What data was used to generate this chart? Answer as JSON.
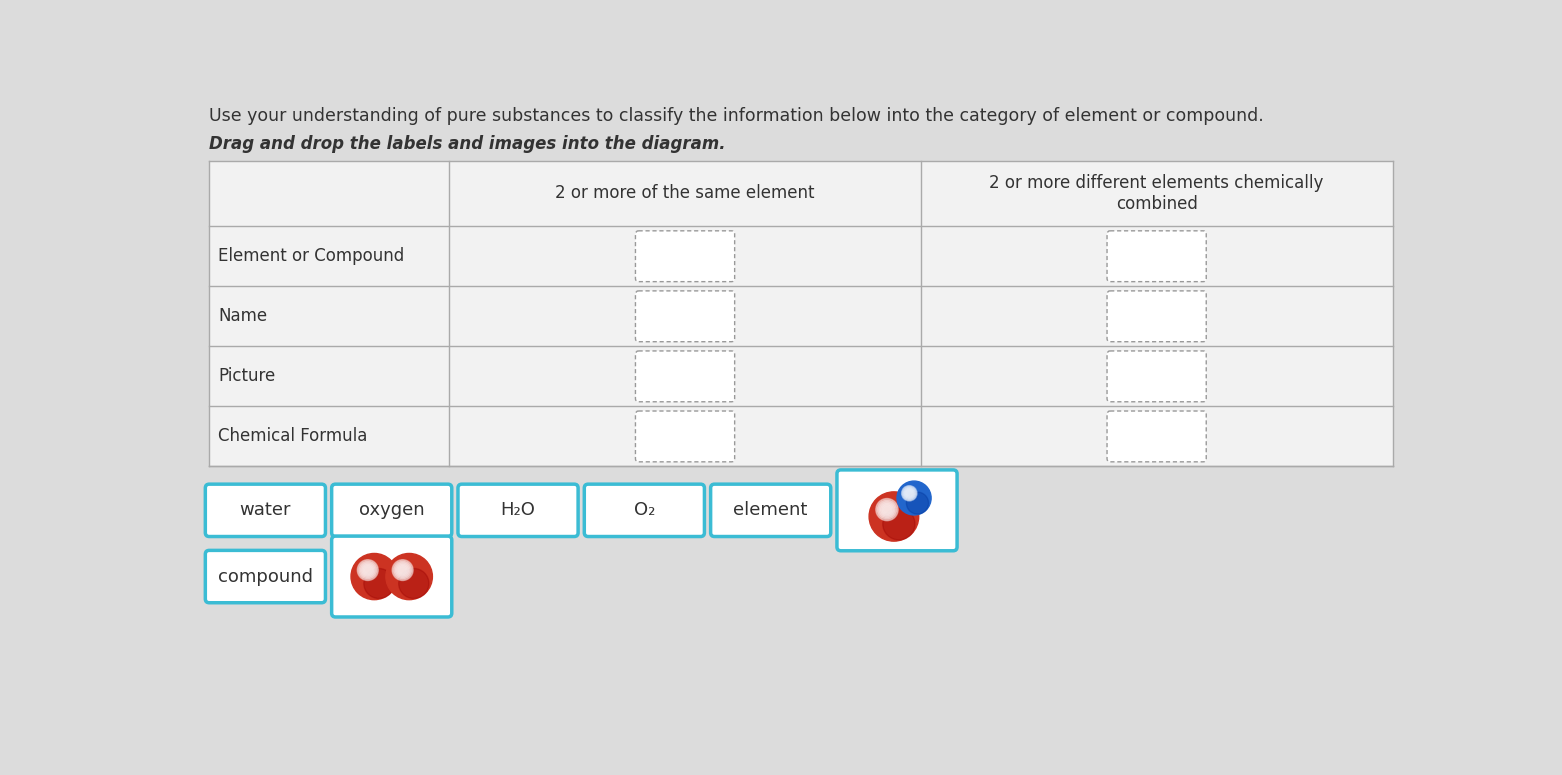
{
  "title": "Use your understanding of pure substances to classify the information below into the category of element or compound.",
  "subtitle": "Drag and drop the labels and images into the diagram.",
  "bg_color": "#dcdcdc",
  "table_bg": "#efefef",
  "header_col2": "2 or more of the same element",
  "header_col3": "2 or more different elements chemically\ncombined",
  "row_labels": [
    "Element or Compound",
    "Name",
    "Picture",
    "Chemical Formula"
  ],
  "card_border_color": "#3bbcd4",
  "card_bg": "#ffffff",
  "label_cards": [
    "water",
    "oxygen",
    "H₂O",
    "O₂",
    "element"
  ],
  "label_card_second_row": [
    "compound"
  ],
  "table_border": "#aaaaaa",
  "dashed_box_color": "#aaaaaa",
  "text_color": "#333333"
}
